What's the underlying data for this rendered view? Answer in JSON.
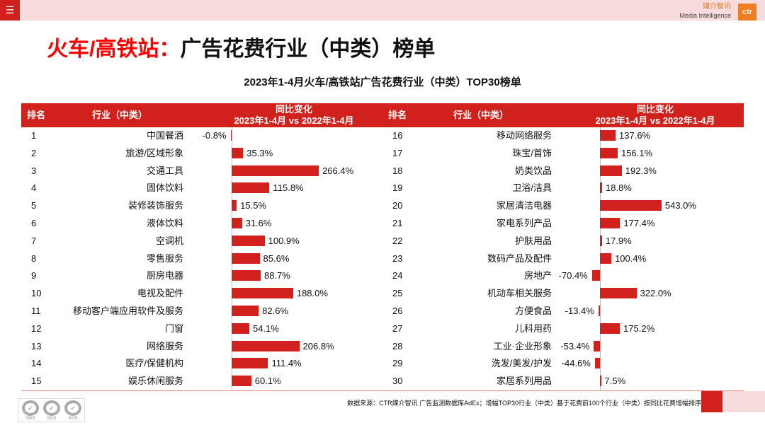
{
  "header": {
    "menu_icon": "hamburger-icon",
    "logo_cn": "媒介智讯",
    "logo_en": "Media Intelligence",
    "logo_mark": "ctr"
  },
  "title": {
    "red": "火车/高铁站：",
    "black": "广告花费行业（中类）榜单"
  },
  "chart_data": {
    "type": "table",
    "title": "2023年1-4月火车/高铁站广告花费行业（中类）TOP30榜单",
    "columns": [
      "排名",
      "行业（中类）",
      "同比变化\n2023年1-4月 vs 2022年1-4月"
    ],
    "col_change_line1": "同比变化",
    "col_change_line2": "2023年1-4月 vs 2022年1-4月",
    "bar_color": "#d0211c",
    "rows": [
      {
        "rank": 1,
        "industry": "中国餐酒",
        "change": -0.8
      },
      {
        "rank": 2,
        "industry": "旅游/区域形象",
        "change": 35.3
      },
      {
        "rank": 3,
        "industry": "交通工具",
        "change": 266.4
      },
      {
        "rank": 4,
        "industry": "固体饮料",
        "change": 115.8
      },
      {
        "rank": 5,
        "industry": "装修装饰服务",
        "change": 15.5
      },
      {
        "rank": 6,
        "industry": "液体饮料",
        "change": 31.6
      },
      {
        "rank": 7,
        "industry": "空调机",
        "change": 100.9
      },
      {
        "rank": 8,
        "industry": "零售服务",
        "change": 85.6
      },
      {
        "rank": 9,
        "industry": "厨房电器",
        "change": 88.7
      },
      {
        "rank": 10,
        "industry": "电视及配件",
        "change": 188.0
      },
      {
        "rank": 11,
        "industry": "移动客户端应用软件及服务",
        "change": 82.6
      },
      {
        "rank": 12,
        "industry": "门窗",
        "change": 54.1
      },
      {
        "rank": 13,
        "industry": "网络服务",
        "change": 206.8
      },
      {
        "rank": 14,
        "industry": "医疗/保健机构",
        "change": 111.4
      },
      {
        "rank": 15,
        "industry": "娱乐休闲服务",
        "change": 60.1
      },
      {
        "rank": 16,
        "industry": "移动网络服务",
        "change": 137.6
      },
      {
        "rank": 17,
        "industry": "珠宝/首饰",
        "change": 156.1
      },
      {
        "rank": 18,
        "industry": "奶类饮品",
        "change": 192.3
      },
      {
        "rank": 19,
        "industry": "卫浴/洁具",
        "change": 18.8
      },
      {
        "rank": 20,
        "industry": "家居清洁电器",
        "change": 543.0
      },
      {
        "rank": 21,
        "industry": "家电系列产品",
        "change": 177.4
      },
      {
        "rank": 22,
        "industry": "护肤用品",
        "change": 17.9
      },
      {
        "rank": 23,
        "industry": "数码产品及配件",
        "change": 100.4
      },
      {
        "rank": 24,
        "industry": "房地产",
        "change": -70.4
      },
      {
        "rank": 25,
        "industry": "机动车相关服务",
        "change": 322.0
      },
      {
        "rank": 26,
        "industry": "方便食品",
        "change": -13.4
      },
      {
        "rank": 27,
        "industry": "儿科用药",
        "change": 175.2
      },
      {
        "rank": 28,
        "industry": "工业·企业形象",
        "change": -53.4
      },
      {
        "rank": 29,
        "industry": "洗发/美发/护发",
        "change": -44.6
      },
      {
        "rank": 30,
        "industry": "家居系列用品",
        "change": 7.5
      }
    ]
  },
  "footer": {
    "source": "数据来源：CTR媒介智讯 广告监测数据库AdEx；增幅TOP30行业（中类）基于花费前100个行业（中类）按同比花费增幅排序",
    "badge": "SGS"
  }
}
